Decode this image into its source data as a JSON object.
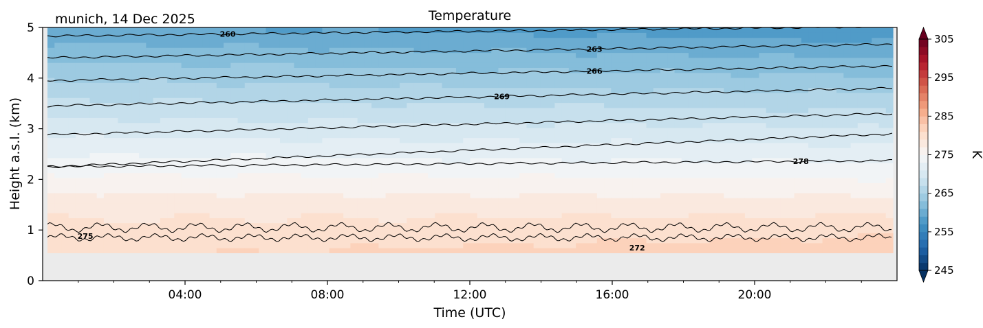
{
  "chart_data": {
    "type": "contourf",
    "title": "Temperature",
    "subtitle": "munich, 14 Dec 2025",
    "xlabel": "Time (UTC)",
    "ylabel": "Height a.s.l. (km)",
    "xlim_hours": [
      0,
      24
    ],
    "ylim": [
      0,
      5
    ],
    "x_ticks": [
      {
        "hour": 4,
        "label": "04:00"
      },
      {
        "hour": 8,
        "label": "08:00"
      },
      {
        "hour": 12,
        "label": "12:00"
      },
      {
        "hour": 16,
        "label": "16:00"
      },
      {
        "hour": 20,
        "label": "20:00"
      }
    ],
    "y_ticks": [
      {
        "value": 0,
        "label": "0"
      },
      {
        "value": 1,
        "label": "1"
      },
      {
        "value": 2,
        "label": "2"
      },
      {
        "value": 3,
        "label": "3"
      },
      {
        "value": 4,
        "label": "4"
      },
      {
        "value": 5,
        "label": "5"
      }
    ],
    "data_bottom_km": 0.55,
    "colorbar": {
      "label": "K",
      "vmin": 245,
      "vmax": 305,
      "step": 2,
      "extend": "both",
      "ticks": [
        {
          "value": 245,
          "label": "245"
        },
        {
          "value": 255,
          "label": "255"
        },
        {
          "value": 265,
          "label": "265"
        },
        {
          "value": 275,
          "label": "275"
        },
        {
          "value": 285,
          "label": "285"
        },
        {
          "value": 295,
          "label": "295"
        },
        {
          "value": 305,
          "label": "305"
        }
      ]
    },
    "isotherms": [
      {
        "level": 260,
        "label": "260",
        "height_start_km": 4.83,
        "height_end_km": 5.02,
        "label_hour": 5.2
      },
      {
        "level": 263,
        "label": "263",
        "height_start_km": 4.4,
        "height_end_km": 4.67,
        "label_hour": 15.5
      },
      {
        "level": 266,
        "label": "266",
        "height_start_km": 3.95,
        "height_end_km": 4.24,
        "label_hour": 15.5
      },
      {
        "level": 269,
        "label": "269",
        "height_start_km": 3.45,
        "height_end_km": 3.8,
        "label_hour": 12.9
      },
      {
        "level": 272,
        "label": "",
        "height_start_km": 2.88,
        "height_end_km": 3.3,
        "label_hour": null
      },
      {
        "level": 275,
        "label": "",
        "height_start_km": 2.25,
        "height_end_km": 2.9,
        "label_hour": null
      },
      {
        "level": 278,
        "label": "278",
        "height_start_km": 2.25,
        "height_end_km": 2.37,
        "label_hour": 21.3
      }
    ],
    "lower_contour_labels": [
      {
        "label": "275",
        "hour": 1.2,
        "height_km": 0.88
      },
      {
        "label": "272",
        "hour": 16.7,
        "height_km": 0.65
      }
    ]
  }
}
